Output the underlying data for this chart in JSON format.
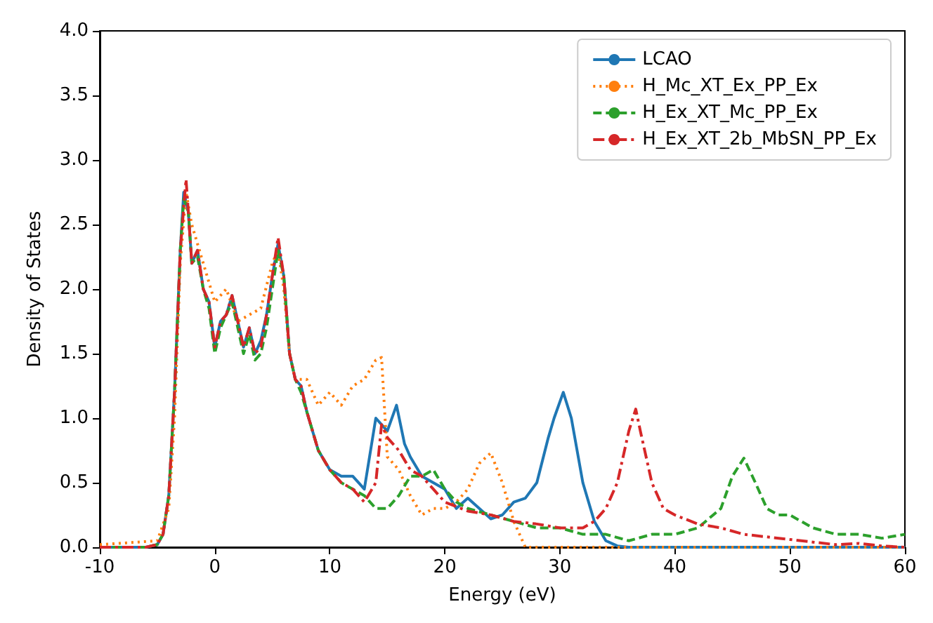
{
  "chart_data": {
    "type": "line",
    "xlabel": "Energy (eV)",
    "ylabel": "Density of States",
    "xlim": [
      -10,
      60
    ],
    "xticks": [
      -10,
      0,
      10,
      20,
      30,
      40,
      50,
      60
    ],
    "ylim": [
      0,
      4
    ],
    "yticks": [
      {
        "value": 0,
        "label": "0.0"
      },
      {
        "value": 0.5,
        "label": "0.5"
      },
      {
        "value": 1,
        "label": "1.0"
      },
      {
        "value": 1.5,
        "label": "1.5"
      },
      {
        "value": 2,
        "label": "2.0"
      },
      {
        "value": 2.5,
        "label": "2.5"
      },
      {
        "value": 3,
        "label": "3.0"
      },
      {
        "value": 3.5,
        "label": "3.5"
      },
      {
        "value": 4,
        "label": "4.0"
      }
    ],
    "grid": false,
    "legend": "top right",
    "marker": "none",
    "series": [
      {
        "name": "LCAO",
        "color": "#1f77b4",
        "line_style": "solid",
        "x": [
          -10,
          -6,
          -5,
          -4.5,
          -4,
          -3.5,
          -3,
          -2.7,
          -2.3,
          -2,
          -1.5,
          -1,
          -0.5,
          0,
          0.5,
          1,
          1.5,
          2,
          2.5,
          3,
          3.5,
          4,
          4.5,
          5,
          5.5,
          6,
          6.5,
          7,
          7.5,
          8,
          9,
          10,
          11,
          12,
          13,
          14,
          15,
          15.8,
          16.5,
          17,
          18,
          19,
          20,
          21,
          22,
          23,
          24,
          25,
          26,
          27,
          28,
          29,
          29.5,
          30.3,
          31,
          32,
          33,
          34,
          35,
          36,
          60
        ],
        "values": [
          0,
          0,
          0.02,
          0.1,
          0.4,
          1.2,
          2.3,
          2.75,
          2.6,
          2.2,
          2.3,
          2.0,
          1.9,
          1.55,
          1.75,
          1.8,
          1.95,
          1.75,
          1.55,
          1.7,
          1.5,
          1.6,
          1.8,
          2.1,
          2.35,
          2.1,
          1.5,
          1.3,
          1.25,
          1.05,
          0.75,
          0.6,
          0.55,
          0.55,
          0.45,
          1.0,
          0.9,
          1.1,
          0.8,
          0.7,
          0.55,
          0.5,
          0.45,
          0.3,
          0.38,
          0.3,
          0.22,
          0.25,
          0.35,
          0.38,
          0.5,
          0.85,
          1.0,
          1.2,
          1.0,
          0.5,
          0.2,
          0.05,
          0.01,
          0,
          0
        ]
      },
      {
        "name": "H_Mc_XT_Ex_PP_Ex",
        "color": "#ff7f0e",
        "line_style": "dotted",
        "x": [
          -10,
          -5,
          -4,
          -3.5,
          -3,
          -2.5,
          -2,
          -1.5,
          -1,
          0,
          1,
          2,
          3,
          4,
          5,
          5.5,
          6,
          6.5,
          7,
          8,
          9,
          10,
          11,
          12,
          13,
          14,
          14.5,
          15,
          16,
          17,
          18,
          19,
          20,
          21,
          22,
          23,
          24,
          25,
          26,
          27,
          28,
          60
        ],
        "values": [
          0.02,
          0.05,
          0.3,
          1.0,
          2.2,
          2.75,
          2.5,
          2.35,
          2.2,
          1.9,
          2.0,
          1.75,
          1.8,
          1.85,
          2.2,
          2.3,
          2.0,
          1.5,
          1.3,
          1.3,
          1.1,
          1.2,
          1.1,
          1.25,
          1.3,
          1.45,
          1.47,
          0.7,
          0.6,
          0.4,
          0.25,
          0.3,
          0.3,
          0.35,
          0.45,
          0.65,
          0.73,
          0.5,
          0.2,
          0,
          0,
          0
        ]
      },
      {
        "name": "H_Ex_XT_Mc_PP_Ex",
        "color": "#2ca02c",
        "line_style": "dashed",
        "x": [
          -10,
          -6,
          -5,
          -4.5,
          -4,
          -3.5,
          -3,
          -2.7,
          -2.3,
          -2,
          -1.5,
          -1,
          -0.5,
          0,
          0.5,
          1,
          1.5,
          2,
          2.5,
          3,
          3.5,
          4,
          4.5,
          5,
          5.5,
          6,
          6.5,
          7,
          7.5,
          8,
          9,
          10,
          11,
          12,
          13,
          14,
          15,
          16,
          17,
          18,
          19,
          20,
          21,
          22,
          24,
          26,
          28,
          30,
          32,
          34,
          36,
          38,
          40,
          42,
          44,
          45,
          46,
          47,
          48,
          49,
          50,
          52,
          54,
          56,
          58,
          60
        ],
        "values": [
          0,
          0,
          0.02,
          0.1,
          0.4,
          1.2,
          2.3,
          2.7,
          2.6,
          2.2,
          2.25,
          2.0,
          1.85,
          1.5,
          1.7,
          1.8,
          1.9,
          1.7,
          1.5,
          1.65,
          1.45,
          1.5,
          1.7,
          2.0,
          2.3,
          2.1,
          1.5,
          1.3,
          1.2,
          1.05,
          0.75,
          0.6,
          0.5,
          0.45,
          0.4,
          0.3,
          0.3,
          0.4,
          0.55,
          0.55,
          0.6,
          0.45,
          0.35,
          0.3,
          0.25,
          0.2,
          0.15,
          0.15,
          0.1,
          0.1,
          0.05,
          0.1,
          0.1,
          0.15,
          0.3,
          0.55,
          0.69,
          0.5,
          0.3,
          0.25,
          0.25,
          0.15,
          0.1,
          0.1,
          0.07,
          0.1
        ]
      },
      {
        "name": "H_Ex_XT_2b_MbSN_PP_Ex",
        "color": "#d62728",
        "line_style": "dashdot",
        "x": [
          -10,
          -6,
          -5,
          -4.5,
          -4,
          -3.5,
          -3,
          -2.5,
          -2.3,
          -2,
          -1.5,
          -1,
          -0.5,
          0,
          0.5,
          1,
          1.5,
          2,
          2.5,
          3,
          3.5,
          4,
          4.5,
          5,
          5.5,
          6,
          6.5,
          7,
          7.5,
          8,
          9,
          10,
          11,
          12,
          13,
          14,
          14.5,
          15,
          16,
          17,
          18,
          19,
          20,
          22,
          24,
          26,
          28,
          30,
          32,
          33,
          34,
          35,
          36,
          36.6,
          37,
          38,
          39,
          40,
          42,
          44,
          46,
          48,
          50,
          52,
          54,
          56,
          58,
          60
        ],
        "values": [
          0,
          0,
          0.02,
          0.1,
          0.4,
          1.2,
          2.3,
          2.85,
          2.6,
          2.2,
          2.3,
          2.0,
          1.9,
          1.55,
          1.75,
          1.8,
          1.95,
          1.75,
          1.55,
          1.7,
          1.5,
          1.55,
          1.8,
          2.1,
          2.4,
          2.1,
          1.5,
          1.3,
          1.25,
          1.05,
          0.75,
          0.6,
          0.5,
          0.45,
          0.35,
          0.5,
          0.95,
          0.85,
          0.75,
          0.6,
          0.55,
          0.45,
          0.35,
          0.28,
          0.25,
          0.2,
          0.18,
          0.15,
          0.15,
          0.2,
          0.3,
          0.5,
          0.9,
          1.07,
          0.9,
          0.5,
          0.3,
          0.25,
          0.18,
          0.15,
          0.1,
          0.08,
          0.06,
          0.04,
          0.02,
          0.03,
          0.01,
          0
        ]
      }
    ]
  }
}
